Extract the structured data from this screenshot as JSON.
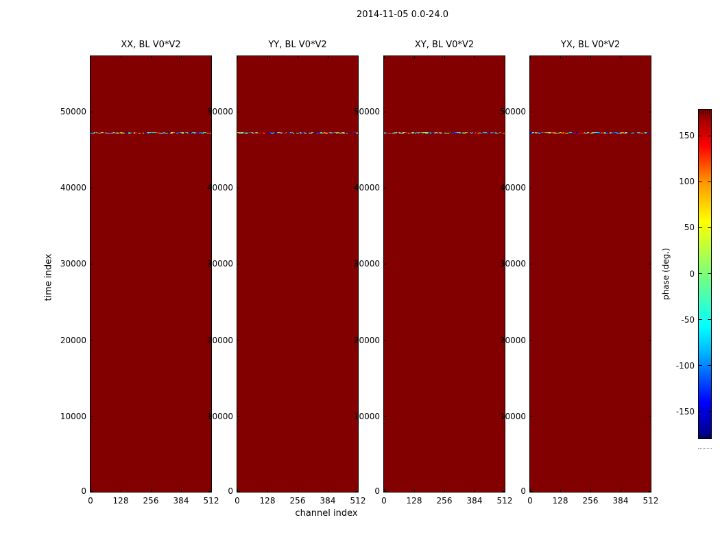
{
  "title": "2014-11-05 0.0-24.0",
  "chart_data": {
    "type": "heatmap",
    "suptitle": "2014-11-05 0.0-24.0",
    "xlabel": "channel index",
    "ylabel": "time index",
    "panels": [
      {
        "title": "XX, BL V0*V2"
      },
      {
        "title": "YY, BL V0*V2"
      },
      {
        "title": "XY, BL V0*V2"
      },
      {
        "title": "YX, BL V0*V2"
      }
    ],
    "x_ticks": [
      0,
      128,
      256,
      384,
      512
    ],
    "y_ticks": [
      0,
      10000,
      20000,
      30000,
      40000,
      50000
    ],
    "xlim": [
      0,
      512
    ],
    "ylim": [
      0,
      57250
    ],
    "colormap": "jet",
    "background_value_deg": 180,
    "panel_fill_color": "#830000",
    "noise_row": {
      "time_index": 47250,
      "description": "single time row of random phase values spanning -180 to 180 deg across all channels"
    },
    "colorbar": {
      "label": "phase (deg.)",
      "ticks": [
        -150,
        -100,
        -50,
        0,
        50,
        100,
        150
      ],
      "vmin": -180,
      "vmax": 180
    },
    "grid": false,
    "legend_position": "none"
  }
}
